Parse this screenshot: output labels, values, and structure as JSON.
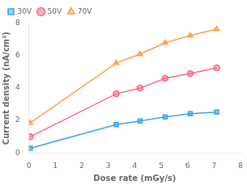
{
  "chart_data": {
    "type": "line",
    "x": [
      0.05,
      3.3,
      4.2,
      5.15,
      6.1,
      7.1
    ],
    "series": [
      {
        "name": "30V",
        "marker": "square",
        "values": [
          0.28,
          1.75,
          1.97,
          2.22,
          2.42,
          2.52
        ]
      },
      {
        "name": "50V",
        "marker": "circle",
        "values": [
          1.0,
          3.65,
          4.0,
          4.6,
          4.9,
          5.25
        ]
      },
      {
        "name": "70V",
        "marker": "triangle",
        "values": [
          1.85,
          5.55,
          6.1,
          6.8,
          7.25,
          7.65
        ]
      }
    ],
    "xlabel": "Dose rate (mGy/s)",
    "ylabel": "Current density (nA/cm²)",
    "xlim": [
      0,
      8
    ],
    "ylim": [
      0,
      8
    ],
    "xticks": [
      0,
      1,
      2,
      3,
      4,
      5,
      6,
      7,
      8
    ],
    "yticks": [
      0,
      2,
      4,
      6,
      8
    ],
    "legend": "upper left",
    "grid": false
  }
}
